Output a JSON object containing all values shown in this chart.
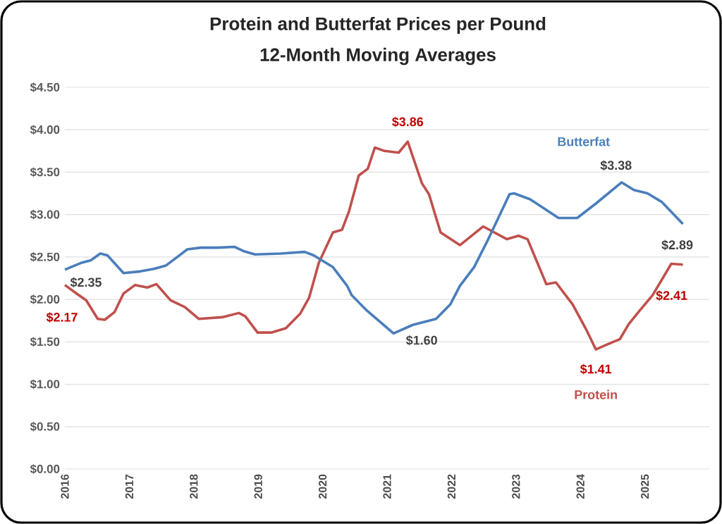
{
  "chart_data": {
    "type": "line",
    "title": "Protein and Butterfat Prices per Pound",
    "subtitle": "12-Month Moving Averages",
    "xlim": [
      2016,
      2026
    ],
    "xticks": [
      2016,
      2017,
      2018,
      2019,
      2020,
      2021,
      2022,
      2023,
      2024,
      2025
    ],
    "ylim": [
      0,
      4.5
    ],
    "yticks": [
      {
        "value": 0,
        "label": "$0.00"
      },
      {
        "value": 0.5,
        "label": "$0.50"
      },
      {
        "value": 1,
        "label": "$1.00"
      },
      {
        "value": 1.5,
        "label": "$1.50"
      },
      {
        "value": 2,
        "label": "$2.00"
      },
      {
        "value": 2.5,
        "label": "$2.50"
      },
      {
        "value": 3,
        "label": "$3.00"
      },
      {
        "value": 3.5,
        "label": "$3.50"
      },
      {
        "value": 4,
        "label": "$4.00"
      },
      {
        "value": 4.5,
        "label": "$4.50"
      }
    ],
    "grid": "y",
    "marker": "none",
    "line_style": "solid",
    "series": [
      {
        "name": "Protein",
        "color": "#c0504d",
        "x": [
          2016.0,
          2016.18,
          2016.33,
          2016.51,
          2016.62,
          2016.77,
          2016.91,
          2017.09,
          2017.28,
          2017.42,
          2017.64,
          2017.86,
          2018.08,
          2018.44,
          2018.7,
          2018.8,
          2018.99,
          2019.21,
          2019.43,
          2019.65,
          2019.79,
          2019.94,
          2020.16,
          2020.3,
          2020.41,
          2020.56,
          2020.7,
          2020.81,
          2020.96,
          2021.18,
          2021.32,
          2021.54,
          2021.65,
          2021.83,
          2022.13,
          2022.49,
          2022.86,
          2023.04,
          2023.18,
          2023.47,
          2023.62,
          2023.88,
          2024.1,
          2024.24,
          2024.42,
          2024.61,
          2024.75,
          2024.9,
          2025.12,
          2025.41,
          2025.59
        ],
        "values": [
          2.17,
          2.07,
          1.99,
          1.77,
          1.76,
          1.85,
          2.07,
          2.17,
          2.14,
          2.18,
          1.99,
          1.91,
          1.77,
          1.79,
          1.84,
          1.8,
          1.61,
          1.61,
          1.66,
          1.83,
          2.02,
          2.43,
          2.79,
          2.82,
          3.04,
          3.46,
          3.54,
          3.79,
          3.75,
          3.73,
          3.86,
          3.37,
          3.24,
          2.79,
          2.64,
          2.86,
          2.71,
          2.75,
          2.71,
          2.18,
          2.2,
          1.94,
          1.63,
          1.41,
          1.47,
          1.53,
          1.71,
          1.85,
          2.05,
          2.42,
          2.41
        ]
      },
      {
        "name": "Butterfat",
        "color": "#4a7ebb",
        "x": [
          2016.0,
          2016.25,
          2016.4,
          2016.55,
          2016.66,
          2016.91,
          2017.17,
          2017.38,
          2017.57,
          2017.9,
          2018.11,
          2018.37,
          2018.63,
          2018.77,
          2018.95,
          2019.35,
          2019.72,
          2019.86,
          2020.16,
          2020.38,
          2020.45,
          2020.67,
          2021.1,
          2021.4,
          2021.76,
          2021.98,
          2022.13,
          2022.35,
          2022.57,
          2022.9,
          2022.97,
          2023.22,
          2023.66,
          2023.95,
          2024.24,
          2024.64,
          2024.83,
          2025.04,
          2025.26,
          2025.59
        ],
        "values": [
          2.35,
          2.43,
          2.46,
          2.54,
          2.52,
          2.31,
          2.33,
          2.36,
          2.4,
          2.59,
          2.61,
          2.61,
          2.62,
          2.57,
          2.53,
          2.54,
          2.56,
          2.52,
          2.38,
          2.16,
          2.05,
          1.88,
          1.6,
          1.7,
          1.77,
          1.94,
          2.16,
          2.38,
          2.71,
          3.24,
          3.25,
          3.18,
          2.96,
          2.96,
          3.13,
          3.38,
          3.29,
          3.25,
          3.15,
          2.89
        ]
      }
    ],
    "annotations": [
      {
        "text": "$3.86",
        "x": 2021.32,
        "y": 3.86
      },
      {
        "text": "$3.38",
        "x": 2024.64,
        "y": 3.38
      },
      {
        "text": "$2.35",
        "x": 2016.0,
        "y": 2.35
      },
      {
        "text": "$1.60",
        "x": 2021.1,
        "y": 1.6
      },
      {
        "text": "$2.89",
        "x": 2025.59,
        "y": 2.89
      },
      {
        "text": "$2.17",
        "x": 2016.0,
        "y": 2.17
      },
      {
        "text": "$1.41",
        "x": 2024.24,
        "y": 1.41
      },
      {
        "text": "$2.41",
        "x": 2025.59,
        "y": 2.41
      }
    ]
  }
}
